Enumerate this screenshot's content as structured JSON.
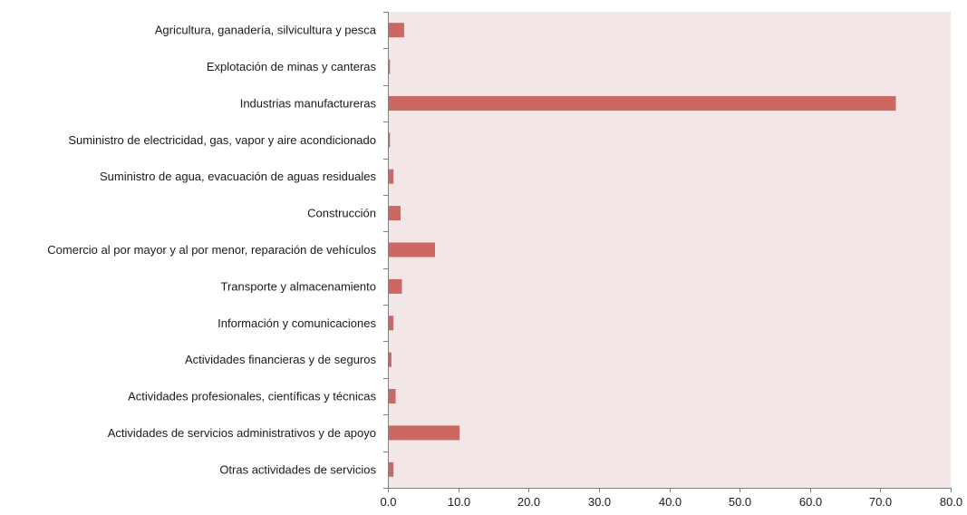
{
  "chart_data": {
    "type": "bar",
    "orientation": "horizontal",
    "title": "",
    "xlabel": "",
    "ylabel": "",
    "categories": [
      "Agricultura, ganadería, silvicultura y pesca",
      "Explotación de minas y canteras",
      "Industrias manufactureras",
      "Suministro de electricidad, gas, vapor y aire acondicionado",
      "Suministro de agua, evacuación de aguas residuales",
      "Construcción",
      "Comercio al por mayor y al por menor, reparación de vehículos",
      "Transporte y almacenamiento",
      "Información y comunicaciones",
      "Actividades financieras y de seguros",
      "Actividades profesionales, científicas y técnicas",
      "Actividades de servicios administrativos y de apoyo",
      "Otras actividades de servicios"
    ],
    "values": [
      2.3,
      0.3,
      72.2,
      0.3,
      0.8,
      1.8,
      6.7,
      2.0,
      0.8,
      0.5,
      1.1,
      10.2,
      0.8
    ],
    "xlim": [
      0,
      80
    ],
    "xticks": [
      0,
      10,
      20,
      30,
      40,
      50,
      60,
      70,
      80
    ],
    "xtick_labels": [
      "0.0",
      "10.0",
      "20.0",
      "30.0",
      "40.0",
      "50.0",
      "60.0",
      "70.0",
      "80.0"
    ],
    "grid": false,
    "legend": "none",
    "colors": {
      "bar": "#cd6762",
      "plot_background": "#f3e6e6",
      "axis": "#808080"
    }
  }
}
